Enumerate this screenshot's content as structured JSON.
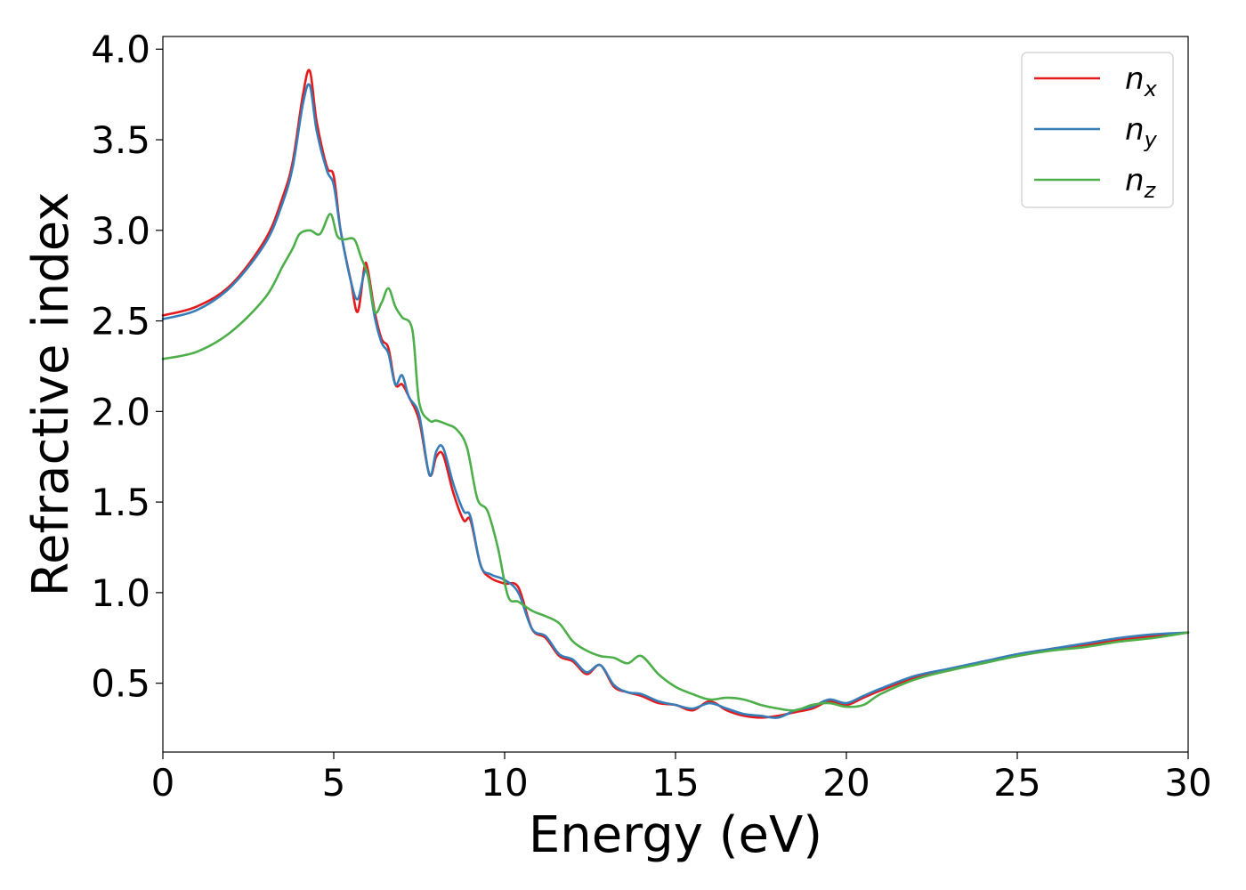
{
  "chart_data": {
    "type": "line",
    "xlabel": "Energy (eV)",
    "ylabel": "Refractive index",
    "xlim": [
      0,
      30
    ],
    "ylim": [
      0.12,
      4.07
    ],
    "xticks": [
      0,
      5,
      10,
      15,
      20,
      25,
      30
    ],
    "xtick_labels": [
      "0",
      "5",
      "10",
      "15",
      "20",
      "25",
      "30"
    ],
    "yticks": [
      0.5,
      1.0,
      1.5,
      2.0,
      2.5,
      3.0,
      3.5,
      4.0
    ],
    "ytick_labels": [
      "0.5",
      "1.0",
      "1.5",
      "2.0",
      "2.5",
      "3.0",
      "3.5",
      "4.0"
    ],
    "grid": false,
    "legend_position": "top-right",
    "series": [
      {
        "name": "n_x",
        "label_main": "n",
        "label_sub": "x",
        "color": "#e41a1c",
        "x": [
          0,
          1,
          2,
          3,
          3.5,
          3.8,
          4.1,
          4.3,
          4.5,
          4.8,
          5.0,
          5.2,
          5.5,
          5.7,
          5.9,
          6.0,
          6.2,
          6.4,
          6.6,
          6.8,
          7.0,
          7.2,
          7.5,
          7.8,
          8.0,
          8.2,
          8.5,
          8.8,
          9.0,
          9.3,
          9.6,
          10.0,
          10.4,
          10.8,
          11.2,
          11.6,
          12.0,
          12.4,
          12.8,
          13.2,
          13.6,
          14.0,
          14.5,
          15.0,
          15.5,
          16.0,
          16.5,
          17.0,
          17.5,
          18.0,
          18.5,
          19.0,
          19.5,
          20.0,
          20.5,
          21.0,
          22.0,
          23.0,
          24.0,
          25.0,
          26.0,
          27.0,
          28.0,
          29.0,
          30.0
        ],
        "y": [
          2.53,
          2.58,
          2.7,
          2.95,
          3.18,
          3.38,
          3.75,
          3.88,
          3.6,
          3.35,
          3.3,
          3.0,
          2.72,
          2.55,
          2.8,
          2.78,
          2.55,
          2.4,
          2.35,
          2.15,
          2.15,
          2.08,
          1.95,
          1.65,
          1.75,
          1.76,
          1.55,
          1.4,
          1.4,
          1.15,
          1.08,
          1.05,
          1.03,
          0.8,
          0.75,
          0.65,
          0.62,
          0.55,
          0.6,
          0.48,
          0.45,
          0.43,
          0.39,
          0.38,
          0.35,
          0.4,
          0.35,
          0.32,
          0.31,
          0.32,
          0.34,
          0.36,
          0.4,
          0.38,
          0.42,
          0.46,
          0.53,
          0.57,
          0.62,
          0.65,
          0.69,
          0.71,
          0.74,
          0.76,
          0.78
        ]
      },
      {
        "name": "n_y",
        "label_main": "n",
        "label_sub": "y",
        "color": "#377eb8",
        "x": [
          0,
          1,
          2,
          3,
          3.5,
          3.8,
          4.1,
          4.3,
          4.5,
          4.8,
          5.0,
          5.2,
          5.5,
          5.7,
          5.9,
          6.0,
          6.2,
          6.4,
          6.6,
          6.8,
          7.0,
          7.2,
          7.5,
          7.8,
          8.0,
          8.2,
          8.5,
          8.8,
          9.0,
          9.3,
          9.6,
          10.0,
          10.4,
          10.8,
          11.2,
          11.6,
          12.0,
          12.4,
          12.8,
          13.2,
          13.6,
          14.0,
          14.5,
          15.0,
          15.5,
          16.0,
          16.5,
          17.0,
          17.5,
          18.0,
          18.5,
          19.0,
          19.5,
          20.0,
          20.5,
          21.0,
          22.0,
          23.0,
          24.0,
          25.0,
          26.0,
          27.0,
          28.0,
          29.0,
          30.0
        ],
        "y": [
          2.51,
          2.56,
          2.69,
          2.93,
          3.15,
          3.35,
          3.7,
          3.8,
          3.55,
          3.33,
          3.25,
          3.0,
          2.72,
          2.62,
          2.77,
          2.75,
          2.52,
          2.38,
          2.32,
          2.15,
          2.2,
          2.08,
          1.98,
          1.65,
          1.78,
          1.8,
          1.6,
          1.45,
          1.42,
          1.15,
          1.1,
          1.07,
          1.0,
          0.8,
          0.76,
          0.66,
          0.63,
          0.56,
          0.6,
          0.49,
          0.45,
          0.44,
          0.4,
          0.38,
          0.36,
          0.39,
          0.36,
          0.33,
          0.32,
          0.31,
          0.35,
          0.37,
          0.41,
          0.39,
          0.43,
          0.47,
          0.54,
          0.58,
          0.62,
          0.66,
          0.69,
          0.72,
          0.75,
          0.77,
          0.78
        ]
      },
      {
        "name": "n_z",
        "label_main": "n",
        "label_sub": "z",
        "color": "#4daf4a",
        "x": [
          0,
          1,
          2,
          3,
          3.5,
          3.8,
          4.0,
          4.3,
          4.6,
          4.9,
          5.1,
          5.3,
          5.6,
          5.8,
          6.0,
          6.2,
          6.4,
          6.6,
          6.8,
          7.0,
          7.3,
          7.5,
          7.8,
          8.0,
          8.3,
          8.6,
          8.9,
          9.2,
          9.5,
          9.8,
          10.1,
          10.4,
          10.8,
          11.2,
          11.6,
          12.0,
          12.4,
          12.8,
          13.2,
          13.6,
          14.0,
          14.5,
          15.0,
          15.5,
          16.0,
          16.5,
          17.0,
          17.5,
          18.0,
          18.5,
          19.0,
          19.5,
          20.0,
          20.5,
          21.0,
          22.0,
          23.0,
          24.0,
          25.0,
          26.0,
          27.0,
          28.0,
          29.0,
          30.0
        ],
        "y": [
          2.29,
          2.33,
          2.44,
          2.63,
          2.8,
          2.9,
          2.98,
          3.0,
          2.98,
          3.09,
          2.97,
          2.95,
          2.95,
          2.85,
          2.75,
          2.55,
          2.6,
          2.68,
          2.58,
          2.52,
          2.45,
          2.05,
          1.95,
          1.95,
          1.93,
          1.9,
          1.8,
          1.52,
          1.45,
          1.25,
          0.98,
          0.95,
          0.9,
          0.87,
          0.83,
          0.73,
          0.68,
          0.65,
          0.64,
          0.61,
          0.65,
          0.55,
          0.48,
          0.44,
          0.41,
          0.42,
          0.41,
          0.38,
          0.36,
          0.35,
          0.38,
          0.39,
          0.37,
          0.38,
          0.44,
          0.52,
          0.57,
          0.61,
          0.65,
          0.68,
          0.7,
          0.73,
          0.75,
          0.78
        ]
      }
    ]
  }
}
